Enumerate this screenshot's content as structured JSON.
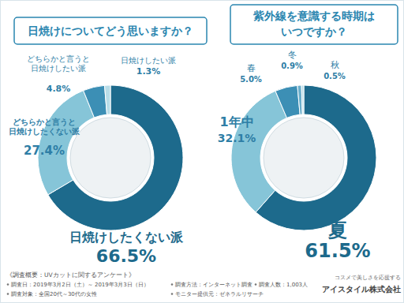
{
  "chart_data": [
    {
      "type": "pie",
      "title": "日焼けについてどう思いますか？",
      "categories": [
        "日焼けしたくない派",
        "どちらかと言うと\n日焼けしたくない派",
        "どちらかと言うと\n日焼けしたい派",
        "日焼けしたい派"
      ],
      "values": [
        66.5,
        27.4,
        4.8,
        1.3
      ],
      "value_labels": [
        "66.5%",
        "27.4%",
        "4.8%",
        "1.3%"
      ],
      "colors": [
        "#1d6a8c",
        "#86c5d8",
        "#3c8fb5",
        "#b8dde8"
      ],
      "data_labels": true
    },
    {
      "type": "pie",
      "title": "紫外線を意識する時期は\nいつですか？",
      "categories": [
        "夏",
        "1年中",
        "春",
        "冬",
        "秋"
      ],
      "values": [
        61.5,
        32.1,
        5.0,
        0.9,
        0.5
      ],
      "value_labels": [
        "61.5%",
        "32.1%",
        "5.0%",
        "0.9%",
        "0.5%"
      ],
      "colors": [
        "#1d6a8c",
        "#86c5d8",
        "#3c8fb5",
        "#6aaecb",
        "#b8dde8"
      ],
      "data_labels": true
    }
  ],
  "footer": {
    "title": "《調査概要：UVカットに関するアンケート》",
    "items": [
      "調査日：2019年3月2日（土）～ 2019年3月3日（日）",
      "調査方法：インターネット調査",
      "調査人数：1,003人",
      "調査対象：全国20代～30代の女性",
      "モニター提供元：ゼネラルリサーチ"
    ]
  },
  "logo": {
    "tagline": "コスメで美しさを応援する",
    "name": "アイスタイル株式会社"
  }
}
